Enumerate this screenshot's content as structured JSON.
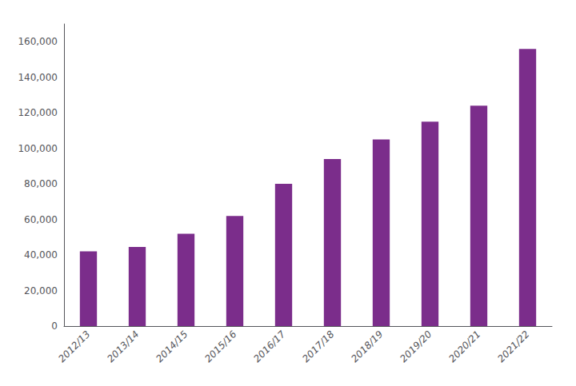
{
  "chart_data": {
    "type": "bar",
    "categories": [
      "2012/13",
      "2013/14",
      "2014/15",
      "2015/16",
      "2016/17",
      "2017/18",
      "2018/19",
      "2019/20",
      "2020/21",
      "2021/22"
    ],
    "values": [
      42000,
      44500,
      52000,
      62000,
      80000,
      94000,
      105000,
      115000,
      124000,
      156000
    ],
    "color": "#7b2d8b",
    "ylim": [
      0,
      170000
    ],
    "yticks": [
      0,
      {
        "value": 20000,
        "label": "20,000"
      },
      {
        "value": 40000,
        "label": "40,000"
      },
      {
        "value": 60000,
        "label": "60,000"
      },
      {
        "value": 80000,
        "label": "80,000"
      },
      {
        "value": 100000,
        "label": "100,000"
      },
      {
        "value": 120000,
        "label": "120,000"
      },
      {
        "value": 140000,
        "label": "140,000"
      },
      {
        "value": 160000,
        "label": "160,000"
      }
    ],
    "grid": false
  }
}
